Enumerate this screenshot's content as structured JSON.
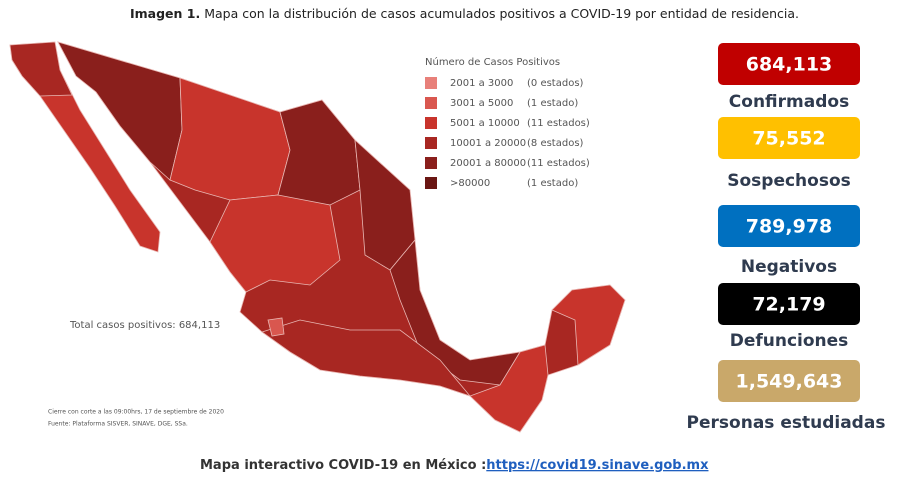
{
  "header": {
    "label": "Imagen 1.",
    "title": "Mapa con la distribución de casos acumulados positivos a COVID-19 por entidad de residencia."
  },
  "legend": {
    "title": "Número de Casos Positivos",
    "items": [
      {
        "range": "2001 a   3000",
        "count": "(0 estados)",
        "color": "#e8807a"
      },
      {
        "range": "3001 a   5000",
        "count": "(1 estado)",
        "color": "#d9574f"
      },
      {
        "range": "5001 a  10000",
        "count": "(11 estados)",
        "color": "#c8342c"
      },
      {
        "range": "10001 a  20000",
        "count": "(8 estados)",
        "color": "#a82722"
      },
      {
        "range": "20001 a  80000",
        "count": "(11 estados)",
        "color": "#8a1f1c"
      },
      {
        "range": ">80000",
        "count": "(1 estado)",
        "color": "#6a1613"
      }
    ]
  },
  "map": {
    "total": "Total casos positivos: 684,113",
    "notes": [
      "Cierre con corte a las 09:00hrs, 17 de septiembre de 2020",
      "Fuente: Plataforma SISVER, SINAVE, DGE, SSa."
    ]
  },
  "stats": [
    {
      "value": "684,113",
      "label": "Confirmados",
      "color": "#c00000",
      "text_color": "#ffffff"
    },
    {
      "value": "75,552",
      "label": "Sospechosos",
      "color": "#ffc000",
      "text_color": "#ffffff"
    },
    {
      "value": "789,978",
      "label": "Negativos",
      "color": "#0070c0",
      "text_color": "#ffffff"
    },
    {
      "value": "72,179",
      "label": "Defunciones",
      "color": "#000000",
      "text_color": "#ffffff"
    },
    {
      "value": "1,549,643",
      "label": "Personas estudiadas",
      "color": "#c9a86a",
      "text_color": "#ffffff"
    }
  ],
  "footer": {
    "text": "Mapa interactivo COVID-19 en México :",
    "link": "https://covid19.sinave.gob.mx"
  }
}
